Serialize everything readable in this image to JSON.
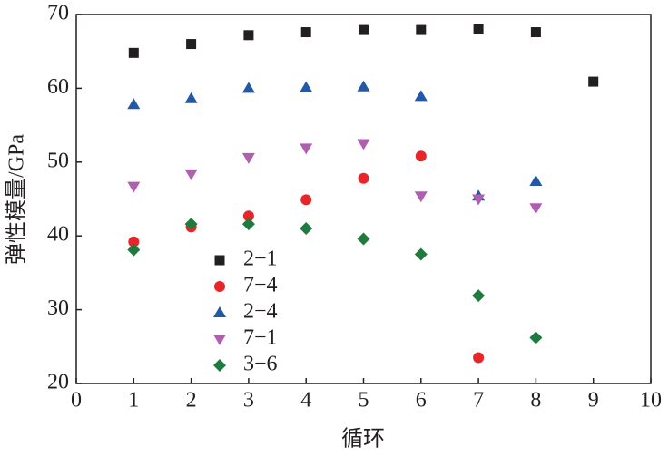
{
  "chart_data": {
    "type": "scatter",
    "xlabel": "循环",
    "ylabel": "弹性模量/GPa",
    "xlim": [
      0,
      10
    ],
    "ylim": [
      20,
      70
    ],
    "xticks": [
      0,
      1,
      2,
      3,
      4,
      5,
      6,
      7,
      8,
      9,
      10
    ],
    "yticks": [
      20,
      30,
      40,
      50,
      60,
      70
    ],
    "legend": "lower left",
    "series": [
      {
        "name": "2−1",
        "color": "#231f20",
        "marker": "square",
        "x": [
          1,
          2,
          3,
          4,
          5,
          6,
          7,
          8,
          9
        ],
        "values": [
          64.8,
          66.0,
          67.2,
          67.6,
          67.9,
          67.9,
          68.0,
          67.6,
          60.9
        ]
      },
      {
        "name": "7−4",
        "color": "#e8262a",
        "marker": "circle",
        "x": [
          1,
          2,
          3,
          4,
          5,
          6,
          7
        ],
        "values": [
          39.2,
          41.2,
          42.7,
          44.9,
          47.8,
          50.8,
          23.5
        ]
      },
      {
        "name": "2−4",
        "color": "#2358a6",
        "marker": "triangle-up",
        "x": [
          1,
          2,
          3,
          4,
          5,
          6,
          7,
          8
        ],
        "values": [
          57.8,
          58.6,
          60.0,
          60.1,
          60.2,
          58.9,
          45.4,
          47.4
        ]
      },
      {
        "name": "7−1",
        "color": "#b05fb0",
        "marker": "triangle-down",
        "x": [
          1,
          2,
          3,
          4,
          5,
          6,
          7,
          8
        ],
        "values": [
          46.7,
          48.4,
          50.6,
          51.9,
          52.5,
          45.4,
          45.0,
          43.8
        ]
      },
      {
        "name": "3−6",
        "color": "#1f7a3e",
        "marker": "diamond",
        "x": [
          1,
          2,
          3,
          4,
          5,
          6,
          7,
          8
        ],
        "values": [
          38.1,
          41.6,
          41.6,
          41.0,
          39.6,
          37.5,
          31.9,
          26.2
        ]
      }
    ]
  }
}
